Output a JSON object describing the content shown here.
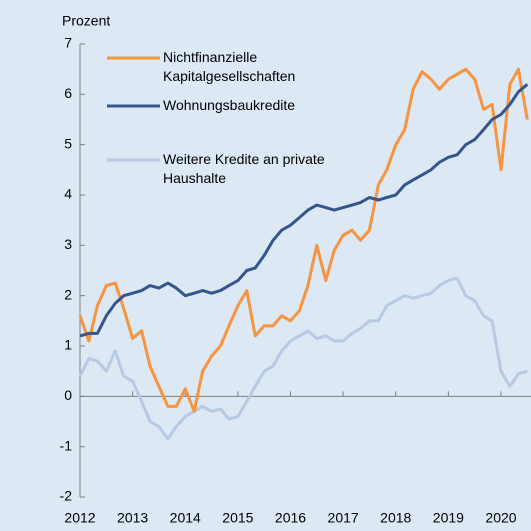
{
  "chart_data": {
    "type": "line",
    "y_label": "Prozent",
    "x": [
      2012,
      2012.17,
      2012.33,
      2012.5,
      2012.67,
      2012.83,
      2013,
      2013.17,
      2013.33,
      2013.5,
      2013.67,
      2013.83,
      2014,
      2014.17,
      2014.33,
      2014.5,
      2014.67,
      2014.83,
      2015,
      2015.17,
      2015.33,
      2015.5,
      2015.67,
      2015.83,
      2016,
      2016.17,
      2016.33,
      2016.5,
      2016.67,
      2016.83,
      2017,
      2017.17,
      2017.33,
      2017.5,
      2017.67,
      2017.83,
      2018,
      2018.17,
      2018.33,
      2018.5,
      2018.67,
      2018.83,
      2019,
      2019.17,
      2019.33,
      2019.5,
      2019.67,
      2019.83,
      2020,
      2020.17,
      2020.33,
      2020.5
    ],
    "series": [
      {
        "name": "Nichtfinanzielle Kapitalgesellschaften",
        "color": "#f7943f",
        "values": [
          1.6,
          1.1,
          1.8,
          2.2,
          2.25,
          1.75,
          1.15,
          1.3,
          0.6,
          0.2,
          -0.2,
          -0.2,
          0.15,
          -0.3,
          0.5,
          0.8,
          1.0,
          1.4,
          1.8,
          2.1,
          1.2,
          1.4,
          1.4,
          1.6,
          1.5,
          1.7,
          2.2,
          3.0,
          2.3,
          2.9,
          3.2,
          3.3,
          3.1,
          3.3,
          4.2,
          4.5,
          5.0,
          5.3,
          6.1,
          6.45,
          6.3,
          6.1,
          6.3,
          6.4,
          6.5,
          6.3,
          5.7,
          5.8,
          4.5,
          6.2,
          6.5,
          5.5
        ]
      },
      {
        "name": "Wohnungsbaukredite",
        "color": "#34568d",
        "values": [
          1.2,
          1.25,
          1.25,
          1.6,
          1.85,
          2.0,
          2.05,
          2.1,
          2.2,
          2.15,
          2.25,
          2.15,
          2.0,
          2.05,
          2.1,
          2.05,
          2.1,
          2.2,
          2.3,
          2.5,
          2.55,
          2.8,
          3.1,
          3.3,
          3.4,
          3.55,
          3.7,
          3.8,
          3.75,
          3.7,
          3.75,
          3.8,
          3.85,
          3.95,
          3.9,
          3.95,
          4.0,
          4.2,
          4.3,
          4.4,
          4.5,
          4.65,
          4.75,
          4.8,
          5.0,
          5.1,
          5.3,
          5.5,
          5.6,
          5.8,
          6.05,
          6.2
        ]
      },
      {
        "name": "Weitere Kredite an private Haushalte",
        "color": "#b8c9e4",
        "values": [
          0.4,
          0.75,
          0.7,
          0.5,
          0.9,
          0.4,
          0.3,
          -0.1,
          -0.5,
          -0.6,
          -0.85,
          -0.6,
          -0.4,
          -0.3,
          -0.2,
          -0.3,
          -0.25,
          -0.45,
          -0.4,
          -0.1,
          0.2,
          0.5,
          0.6,
          0.9,
          1.1,
          1.2,
          1.3,
          1.15,
          1.2,
          1.1,
          1.1,
          1.25,
          1.35,
          1.5,
          1.5,
          1.8,
          1.9,
          2.0,
          1.95,
          2.0,
          2.05,
          2.2,
          2.3,
          2.35,
          2.0,
          1.9,
          1.6,
          1.5,
          0.5,
          0.2,
          0.45,
          0.5
        ]
      }
    ],
    "xlim": [
      2012,
      2020.57
    ],
    "xticks": [
      2012,
      2013,
      2014,
      2015,
      2016,
      2017,
      2018,
      2019,
      2020
    ],
    "ylim": [
      -2,
      7
    ],
    "yticks": [
      -2,
      -1,
      0,
      1,
      2,
      3,
      4,
      5,
      6,
      7
    ],
    "grid": false
  }
}
